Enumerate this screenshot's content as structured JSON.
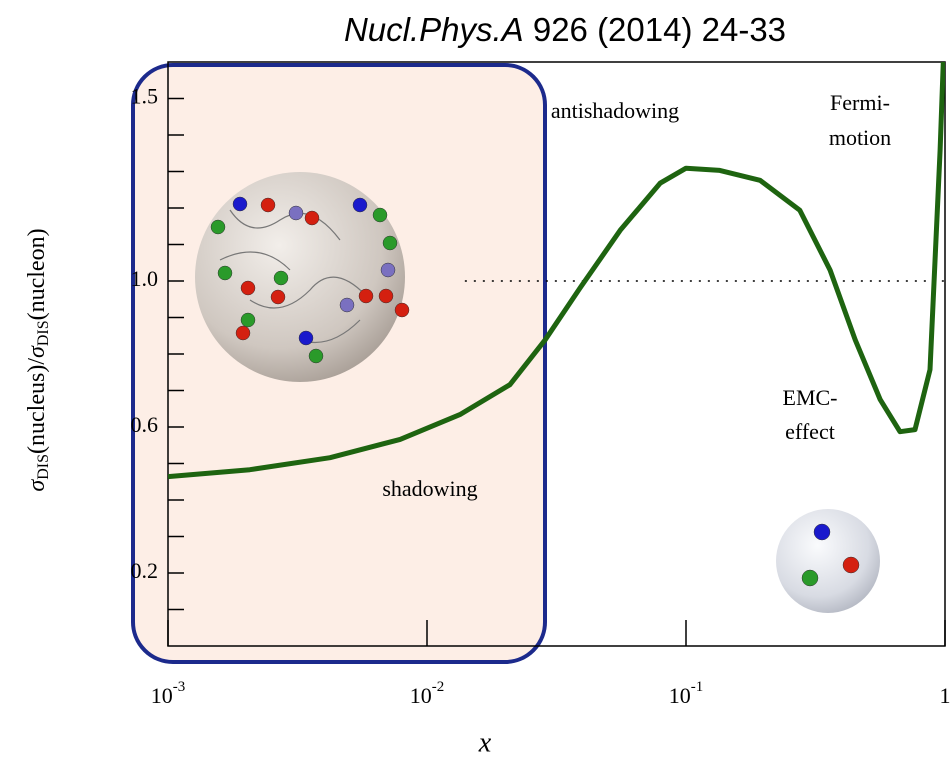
{
  "chart_data": {
    "type": "line",
    "title": [
      "Nucl.Phys.A",
      "926 (2014) 24-33"
    ],
    "xlabel": "x",
    "ylabel": [
      "σ",
      "DIS",
      "(nucleus)/",
      "σ",
      "DIS",
      "(nucleon)"
    ],
    "x": [
      0.001,
      0.00207,
      0.00422,
      0.00787,
      0.0134,
      0.0209,
      0.0286,
      0.039,
      0.0557,
      0.0794,
      0.1,
      0.135,
      0.193,
      0.275,
      0.36,
      0.45,
      0.562,
      0.67,
      0.766,
      0.875,
      0.957,
      0.985
    ],
    "values": [
      0.464,
      0.483,
      0.516,
      0.566,
      0.634,
      0.716,
      0.839,
      0.981,
      1.139,
      1.268,
      1.309,
      1.303,
      1.276,
      1.194,
      1.03,
      0.839,
      0.675,
      0.587,
      0.593,
      0.757,
      1.358,
      1.6
    ],
    "color": "#1e6410",
    "xscale": "log",
    "xlim": [
      0.001,
      1
    ],
    "ylim": [
      0,
      1.6
    ],
    "xticks": [
      {
        "value": 0.001,
        "label": "10",
        "exponent": "-3"
      },
      {
        "value": 0.01,
        "label": "10",
        "exponent": "-2"
      },
      {
        "value": 0.1,
        "label": "10",
        "exponent": "-1"
      },
      1
    ],
    "yticks": [
      0.2,
      0.6,
      {
        "value": 1,
        "label": "1.0"
      },
      1.5
    ],
    "yminor_ticks": [
      0.1,
      0.3,
      0.4,
      0.5,
      0.7,
      0.8,
      0.9,
      1.1,
      1.2,
      1.3,
      1.4
    ],
    "reference_line": {
      "y": 1,
      "xlim": [
        0.014,
        1
      ]
    },
    "annotations": [
      "antishadowing",
      "Fermi-",
      "motion",
      "EMC-",
      "effect",
      "shadowing"
    ]
  }
}
